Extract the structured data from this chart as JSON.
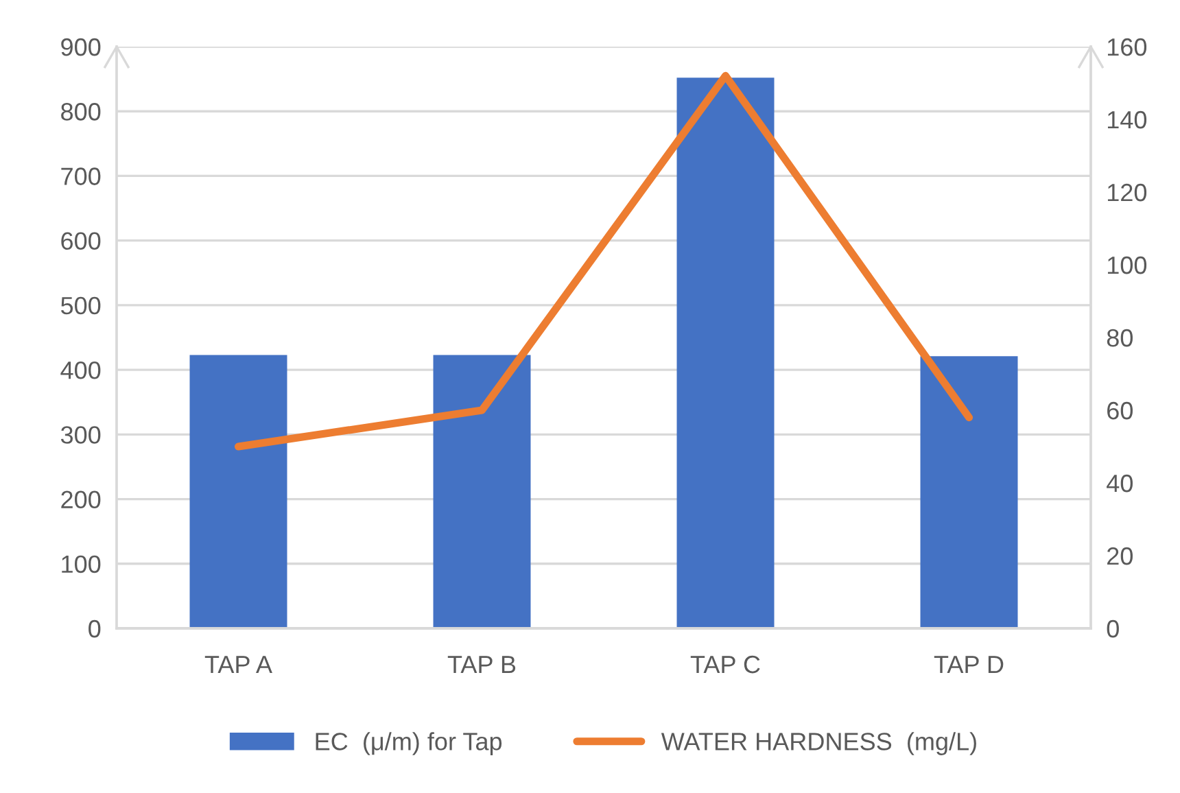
{
  "chart_data": {
    "type": "bar",
    "categories": [
      "TAP A",
      "TAP B",
      "TAP C",
      "TAP D"
    ],
    "series": [
      {
        "name": "EC  (μ/m) for Tap",
        "color": "#4472c4",
        "values": [
          423,
          423,
          852,
          421
        ]
      },
      {
        "name": "WATER HARDNESS  (mg/L)",
        "color": "#ed7d31",
        "type": "line",
        "axis": "y2",
        "values": [
          50,
          60,
          152,
          58
        ]
      }
    ],
    "ylim": [
      0,
      900
    ],
    "yticks": [
      0,
      100,
      200,
      300,
      400,
      500,
      600,
      700,
      800,
      900
    ],
    "y2lim": [
      0,
      160
    ],
    "y2ticks": [
      0,
      20,
      40,
      60,
      80,
      100,
      120,
      140,
      160
    ],
    "grid": "y",
    "legend": "bottom"
  }
}
